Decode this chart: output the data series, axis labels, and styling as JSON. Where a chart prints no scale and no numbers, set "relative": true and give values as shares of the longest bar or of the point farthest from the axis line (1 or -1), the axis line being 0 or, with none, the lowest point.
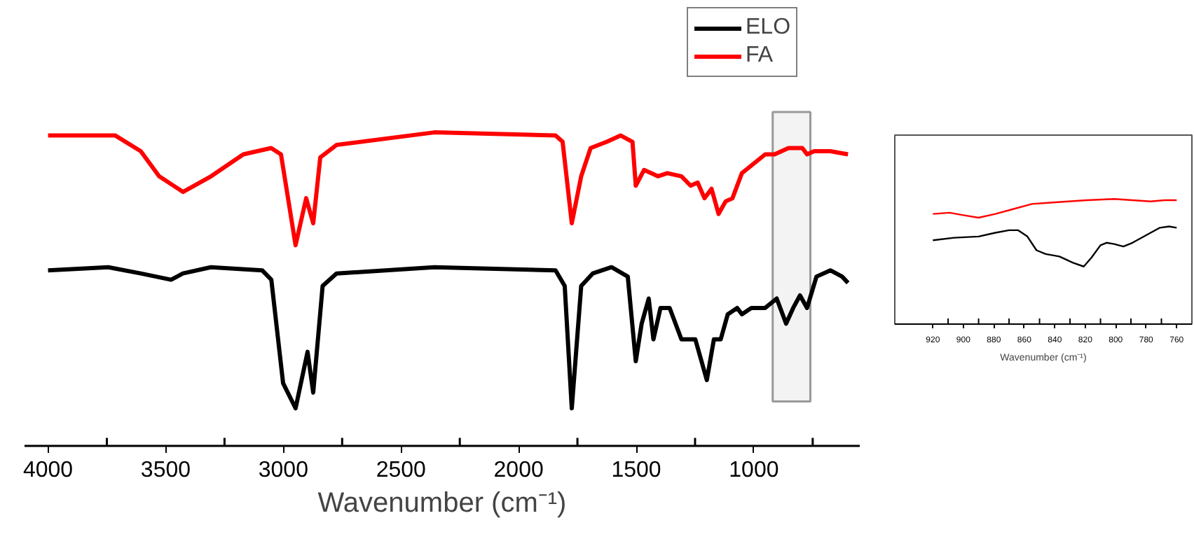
{
  "chart_data": [
    {
      "type": "line",
      "relative": true,
      "xlabel": "Wavenumber (cm⁻¹)",
      "xlim": [
        4100,
        550
      ],
      "xticks": [
        4000,
        {
          "value": 3750,
          "label": null
        },
        3500,
        {
          "value": 3250,
          "label": null
        },
        3000,
        {
          "value": 2750,
          "label": null
        },
        2500,
        {
          "value": 2250,
          "label": null
        },
        2000,
        {
          "value": 1750,
          "label": null
        },
        1500,
        {
          "value": 1250,
          "label": null
        },
        1000,
        {
          "value": 750,
          "label": null
        }
      ],
      "tick_labels": "x",
      "grid": false,
      "legend": "top right",
      "line_style": "solid",
      "marker": "none",
      "bands": [
        {
          "axis": "x",
          "from": 920,
          "to": 760,
          "color": "#999999"
        }
      ],
      "series": [
        {
          "name": "ELO",
          "color": "#000000",
          "x": [
            4000,
            3744,
            3606,
            3477,
            3427,
            3308,
            3090,
            3051,
            3001,
            2948,
            2897,
            2873,
            2833,
            2774,
            2358,
            1843,
            1804,
            1774,
            1734,
            1685,
            1605,
            1536,
            1502,
            1477,
            1447,
            1427,
            1397,
            1358,
            1308,
            1278,
            1249,
            1200,
            1170,
            1141,
            1111,
            1071,
            1051,
            1011,
            952,
            903,
            863,
            833,
            804,
            774,
            734,
            675,
            625,
            600
          ],
          "values": [
            0.56,
            0.57,
            0.55,
            0.53,
            0.55,
            0.57,
            0.56,
            0.53,
            0.2,
            0.12,
            0.3,
            0.17,
            0.51,
            0.55,
            0.57,
            0.56,
            0.51,
            0.12,
            0.51,
            0.55,
            0.57,
            0.54,
            0.27,
            0.39,
            0.47,
            0.34,
            0.44,
            0.44,
            0.34,
            0.34,
            0.34,
            0.21,
            0.34,
            0.34,
            0.42,
            0.44,
            0.42,
            0.44,
            0.44,
            0.47,
            0.39,
            0.44,
            0.48,
            0.44,
            0.54,
            0.56,
            0.54,
            0.52
          ]
        },
        {
          "name": "FA",
          "color": "#ff0000",
          "x": [
            4000,
            3714,
            3606,
            3528,
            3426,
            3307,
            3170,
            3052,
            3010,
            2980,
            2948,
            2903,
            2873,
            2843,
            2774,
            2358,
            1843,
            1813,
            1774,
            1734,
            1694,
            1625,
            1566,
            1516,
            1502,
            1467,
            1437,
            1408,
            1368,
            1308,
            1269,
            1239,
            1210,
            1180,
            1150,
            1120,
            1091,
            1051,
            952,
            912,
            853,
            794,
            774,
            744,
            675,
            600
          ],
          "values": [
            0.99,
            0.99,
            0.94,
            0.86,
            0.81,
            0.86,
            0.93,
            0.95,
            0.93,
            0.79,
            0.64,
            0.79,
            0.71,
            0.92,
            0.96,
            1.0,
            0.99,
            0.97,
            0.71,
            0.86,
            0.95,
            0.97,
            0.99,
            0.97,
            0.83,
            0.88,
            0.87,
            0.86,
            0.87,
            0.86,
            0.83,
            0.84,
            0.79,
            0.82,
            0.74,
            0.78,
            0.79,
            0.87,
            0.93,
            0.93,
            0.95,
            0.95,
            0.93,
            0.94,
            0.94,
            0.93
          ]
        }
      ]
    },
    {
      "type": "line",
      "relative": true,
      "xlabel": "Wavenumber (cm⁻¹)",
      "xlim": [
        945,
        750
      ],
      "xticks": [
        920,
        {
          "value": 910,
          "label": null
        },
        900,
        {
          "value": 890,
          "label": null
        },
        880,
        {
          "value": 870,
          "label": null
        },
        860,
        {
          "value": 850,
          "label": null
        },
        840,
        {
          "value": 830,
          "label": null
        },
        820,
        {
          "value": 810,
          "label": null
        },
        800,
        {
          "value": 790,
          "label": null
        },
        780,
        {
          "value": 770,
          "label": null
        },
        760
      ],
      "tick_labels": "x",
      "grid": false,
      "legend": false,
      "line_style": "solid",
      "marker": "none",
      "series": [
        {
          "color": "#ff0000",
          "x": [
            920,
            909,
            900,
            890,
            879,
            867,
            855,
            843,
            831,
            819,
            801,
            789,
            777,
            768,
            760
          ],
          "values": [
            0.88,
            0.89,
            0.87,
            0.85,
            0.88,
            0.92,
            0.96,
            0.97,
            0.98,
            0.99,
            1.0,
            0.99,
            0.98,
            0.99,
            0.99
          ]
        },
        {
          "color": "#000000",
          "x": [
            920,
            906,
            890,
            879,
            870,
            864,
            858,
            852,
            846,
            837,
            828,
            821,
            816,
            810,
            806,
            801,
            795,
            789,
            780,
            771,
            765,
            760
          ],
          "values": [
            0.67,
            0.69,
            0.7,
            0.73,
            0.75,
            0.75,
            0.7,
            0.59,
            0.56,
            0.54,
            0.49,
            0.46,
            0.53,
            0.63,
            0.65,
            0.64,
            0.62,
            0.65,
            0.71,
            0.77,
            0.78,
            0.77
          ]
        }
      ]
    }
  ]
}
